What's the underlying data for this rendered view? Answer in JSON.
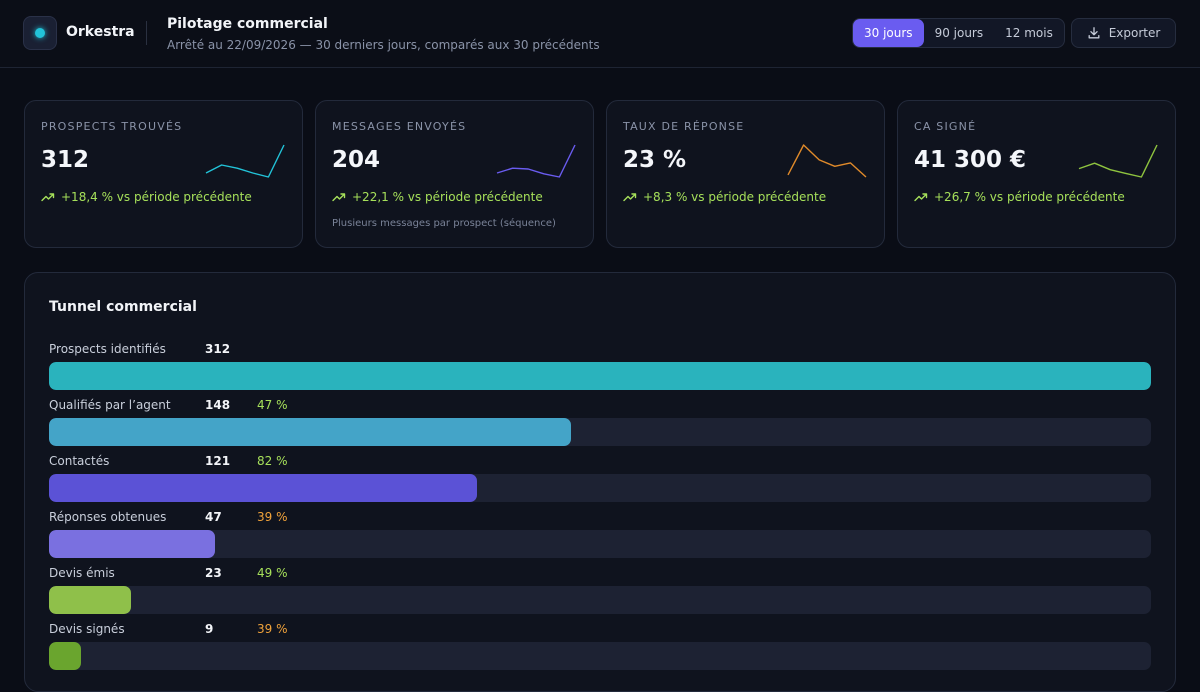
{
  "header": {
    "brand": "Orkestra",
    "title": "Pilotage commercial",
    "subtitle": "Arrêté au 22/09/2026 — 30 derniers jours, comparés aux 30 précédents",
    "periods": [
      {
        "label": "30 jours",
        "active": true
      },
      {
        "label": "90 jours",
        "active": false
      },
      {
        "label": "12 mois",
        "active": false
      }
    ],
    "export_label": "Exporter",
    "export_icon": "download-icon",
    "logo_color": "#22c3d8",
    "accent": "#6a5cf0"
  },
  "kpis": [
    {
      "label": "PROSPECTS TROUVÉS",
      "value": "312",
      "trend": "+18,4 % vs période précédente",
      "note": "",
      "spark_color": "#22c3d8",
      "spark": [
        2,
        4,
        3.2,
        2,
        1,
        9
      ]
    },
    {
      "label": "MESSAGES ENVOYÉS",
      "value": "204",
      "trend": "+22,1 % vs période précédente",
      "note": "Plusieurs messages par prospect (séquence)",
      "spark_color": "#6a5cf0",
      "spark": [
        2,
        3.2,
        3,
        1.8,
        1,
        9
      ]
    },
    {
      "label": "TAUX DE RÉPONSE",
      "value": "23 %",
      "trend": "+8,3 % vs période précédente",
      "note": "",
      "spark_color": "#e08a2a",
      "spark": [
        1,
        8,
        4.5,
        3,
        3.8,
        0.5
      ]
    },
    {
      "label": "CA SIGNÉ",
      "value": "41 300 €",
      "trend": "+26,7 % vs période précédente",
      "note": "",
      "spark_color": "#8fc43f",
      "spark": [
        2.5,
        4,
        2.2,
        1.2,
        0.2,
        9
      ]
    }
  ],
  "funnel": {
    "title": "Tunnel commercial",
    "stages": [
      {
        "label": "Prospects identifiés",
        "count": "312",
        "rate": "",
        "rate_status": "good",
        "fraction": 1.0,
        "color": "#2ab3bd"
      },
      {
        "label": "Qualifiés par l’agent",
        "count": "148",
        "rate": "47 %",
        "rate_status": "good",
        "fraction": 0.474,
        "color": "#44a4c8"
      },
      {
        "label": "Contactés",
        "count": "121",
        "rate": "82 %",
        "rate_status": "good",
        "fraction": 0.388,
        "color": "#5b52d6"
      },
      {
        "label": "Réponses obtenues",
        "count": "47",
        "rate": "39 %",
        "rate_status": "warn",
        "fraction": 0.151,
        "color": "#7a70e0"
      },
      {
        "label": "Devis émis",
        "count": "23",
        "rate": "49 %",
        "rate_status": "good",
        "fraction": 0.074,
        "color": "#8fc04a"
      },
      {
        "label": "Devis signés",
        "count": "9",
        "rate": "39 %",
        "rate_status": "warn",
        "fraction": 0.029,
        "color": "#6aa52e"
      }
    ]
  }
}
